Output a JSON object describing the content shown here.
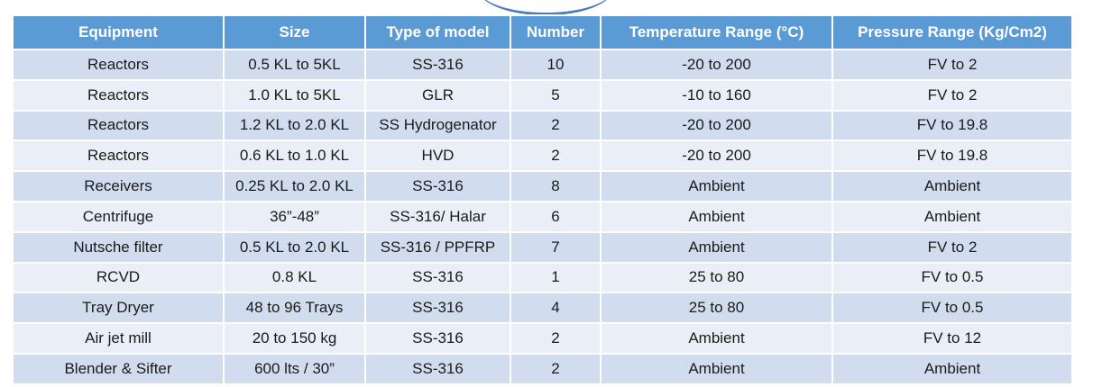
{
  "table": {
    "headers": [
      "Equipment",
      "Size",
      "Type of model",
      "Number",
      "Temperature Range (°C)",
      "Pressure Range (Kg/Cm2)"
    ],
    "rows": [
      [
        "Reactors",
        "0.5 KL to 5KL",
        "SS-316",
        "10",
        "-20 to 200",
        "FV to 2"
      ],
      [
        "Reactors",
        "1.0 KL to 5KL",
        "GLR",
        "5",
        "-10 to 160",
        "FV to 2"
      ],
      [
        "Reactors",
        "1.2 KL to 2.0 KL",
        "SS Hydrogenator",
        "2",
        "-20 to 200",
        "FV to 19.8"
      ],
      [
        "Reactors",
        "0.6 KL to 1.0 KL",
        "HVD",
        "2",
        "-20 to 200",
        "FV to 19.8"
      ],
      [
        "Receivers",
        "0.25 KL to 2.0 KL",
        "SS-316",
        "8",
        "Ambient",
        "Ambient"
      ],
      [
        "Centrifuge",
        "36”-48”",
        "SS-316/ Halar",
        "6",
        "Ambient",
        "Ambient"
      ],
      [
        "Nutsche filter",
        "0.5 KL to 2.0 KL",
        "SS-316 / PPFRP",
        "7",
        "Ambient",
        "FV to 2"
      ],
      [
        "RCVD",
        "0.8 KL",
        "SS-316",
        "1",
        "25 to 80",
        "FV to 0.5"
      ],
      [
        "Tray Dryer",
        "48 to 96 Trays",
        "SS-316",
        "4",
        "25 to 80",
        "FV to 0.5"
      ],
      [
        "Air jet mill",
        "20 to 150 kg",
        "SS-316",
        "2",
        "Ambient",
        "FV to 12"
      ],
      [
        "Blender & Sifter",
        "600 lts / 30”",
        "SS-316",
        "2",
        "Ambient",
        "Ambient"
      ]
    ]
  },
  "colors": {
    "header_bg": "#5b9bd5",
    "header_text": "#ffffff",
    "row_odd_bg": "#d1ddef",
    "row_even_bg": "#e9eef7",
    "accent_arc": "#4a7dbf"
  }
}
